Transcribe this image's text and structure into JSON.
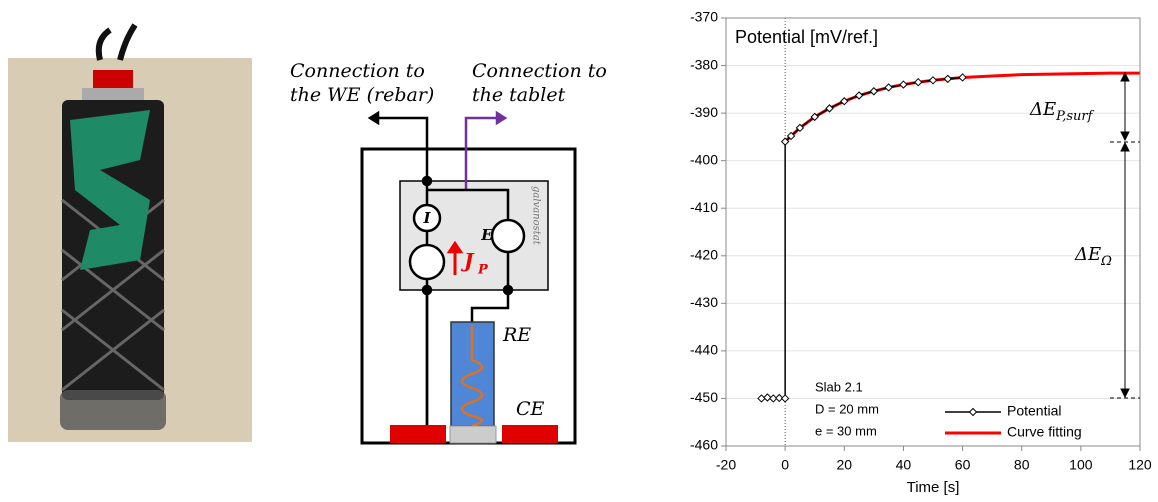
{
  "chart_data": {
    "type": "line",
    "title": "Potential [mV/ref.]",
    "x_label": "Time [s]",
    "xlim": [
      -20,
      120
    ],
    "xticks": [
      -20,
      0,
      20,
      40,
      60,
      80,
      100,
      120
    ],
    "ylim": [
      -460,
      -370
    ],
    "yticks": [
      -460,
      -450,
      -440,
      -430,
      -420,
      -410,
      -400,
      -390,
      -380,
      -370
    ],
    "grid": true,
    "legend": "lower right",
    "series": [
      {
        "name": "Potential",
        "color": "#000000",
        "marker": "diamond",
        "x": [
          -8,
          -6,
          -4,
          -2,
          0,
          0,
          2,
          5,
          10,
          15,
          20,
          25,
          30,
          35,
          40,
          45,
          50,
          55,
          60
        ],
        "values": [
          -450,
          -449.8,
          -450,
          -449.9,
          -450,
          -396,
          -394.8,
          -393.1,
          -390.8,
          -389.0,
          -387.5,
          -386.3,
          -385.4,
          -384.6,
          -384.0,
          -383.5,
          -383.1,
          -382.8,
          -382.5
        ]
      },
      {
        "name": "Curve fitting",
        "color": "#ff0000",
        "marker": "none",
        "x": [
          0,
          5,
          10,
          15,
          20,
          25,
          30,
          35,
          40,
          45,
          50,
          55,
          60,
          70,
          80,
          90,
          100,
          110,
          120
        ],
        "values": [
          -396,
          -393.1,
          -390.8,
          -389.0,
          -387.5,
          -386.3,
          -385.4,
          -384.6,
          -384.0,
          -383.5,
          -383.1,
          -382.8,
          -382.5,
          -382.2,
          -381.9,
          -381.8,
          -381.7,
          -381.6,
          -381.6
        ]
      }
    ],
    "annotations": [
      {
        "text": "ΔE",
        "sub": "P,surf"
      },
      {
        "text": "ΔE",
        "sub": "Ω"
      }
    ],
    "notes": [
      "Slab 2.1",
      "D = 20 mm",
      "e = 30 mm"
    ]
  },
  "diagram": {
    "we_label": [
      "Connection to",
      "the WE (rebar)"
    ],
    "tablet_label": [
      "Connection to",
      "the tablet"
    ],
    "current": "I",
    "potential": "E",
    "jp": "J",
    "jp_sub": "P",
    "galvanostat": "galvanostat",
    "re": "RE",
    "ce": "CE"
  }
}
